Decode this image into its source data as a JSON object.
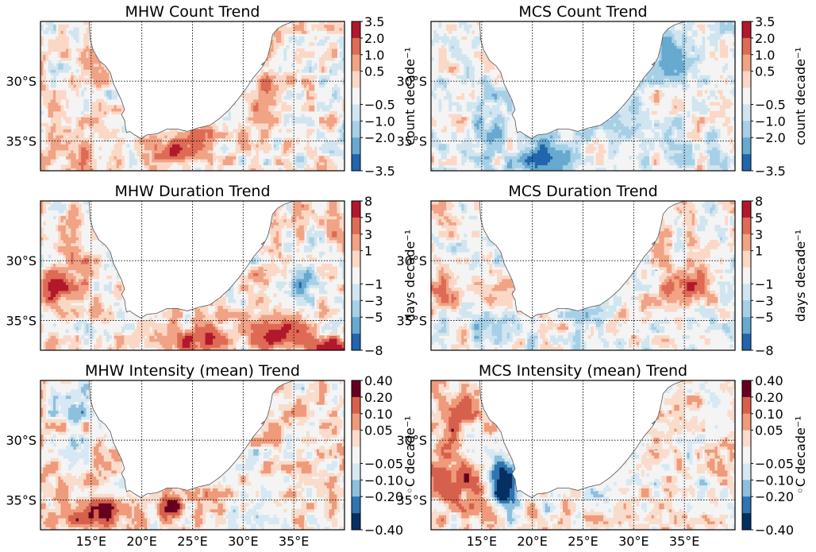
{
  "palettes": {
    "count": [
      "#2166ac",
      "#67a9cf",
      "#a6d0e6",
      "#d1e5f0",
      "#f4f4f4",
      "#fbd8c6",
      "#f1a385",
      "#de6b55",
      "#b2182b"
    ],
    "duration": [
      "#2166ac",
      "#67a9cf",
      "#a6d0e6",
      "#d1e5f0",
      "#f4f4f4",
      "#fbd8c6",
      "#f1a385",
      "#de6b55",
      "#b2182b"
    ],
    "intensity": [
      "#053061",
      "#2f74b3",
      "#8dc0dd",
      "#d6e8f3",
      "#f4f4f4",
      "#f9dccb",
      "#ef9a7b",
      "#d6604d",
      "#67001f"
    ]
  },
  "land_color": "#ffffff",
  "coast_color": "#555555",
  "x_ticks": [
    "15°E",
    "20°E",
    "25°E",
    "30°E",
    "35°E"
  ],
  "y_ticks": [
    "30°S",
    "35°S"
  ],
  "chart_data": [
    {
      "type": "heatmap",
      "id": "mhw-count",
      "title": "MHW Count Trend",
      "colorbar_label": "count decade⁻¹",
      "colorbar_ticks": [
        "3.5",
        "2.0",
        "1.0",
        "0.5",
        "−0.5",
        "−1.0",
        "−2.0",
        "−3.5"
      ],
      "palette": "count",
      "lon_range": [
        10,
        40
      ],
      "lat_range": [
        -37.5,
        -25
      ],
      "bias": 0.12,
      "seed": 11,
      "hotspots": [
        [
          23.2,
          -35.8,
          2.2,
          1.0,
          2.6
        ],
        [
          27.5,
          -34.4,
          3.5,
          0.7,
          1.4
        ],
        [
          13.5,
          -36.5,
          4,
          1.3,
          0.9
        ],
        [
          32.5,
          -30,
          1.5,
          3.5,
          0.8
        ]
      ]
    },
    {
      "type": "heatmap",
      "id": "mcs-count",
      "title": "MCS Count Trend",
      "colorbar_label": "count decade⁻¹",
      "colorbar_ticks": [
        "3.5",
        "2.0",
        "1.0",
        "0.5",
        "−0.5",
        "−1.0",
        "−2.0",
        "−3.5"
      ],
      "palette": "count",
      "lon_range": [
        10,
        40
      ],
      "lat_range": [
        -37.5,
        -25
      ],
      "bias": -0.18,
      "seed": 23,
      "hotspots": [
        [
          21.5,
          -36.3,
          2.5,
          1.2,
          -2.6
        ],
        [
          15.5,
          -33,
          1.5,
          3,
          -1.2
        ],
        [
          33,
          -28,
          3,
          2,
          -1.4
        ],
        [
          30,
          -34,
          4,
          1.3,
          -0.8
        ]
      ]
    },
    {
      "type": "heatmap",
      "id": "mhw-duration",
      "title": "MHW Duration Trend",
      "colorbar_label": "days decade⁻¹",
      "colorbar_ticks": [
        "8",
        "5",
        "3",
        "1",
        "−1",
        "−3",
        "−5",
        "−8"
      ],
      "palette": "duration",
      "lon_range": [
        10,
        40
      ],
      "lat_range": [
        -37.5,
        -25
      ],
      "bias": 0.35,
      "seed": 37,
      "hotspots": [
        [
          12,
          -32,
          2,
          1.5,
          2.2
        ],
        [
          38.5,
          -37.2,
          1.8,
          0.8,
          3.2
        ],
        [
          33.5,
          -36,
          2.5,
          1.3,
          2.3
        ],
        [
          25.5,
          -36.7,
          2.5,
          1.0,
          2.0
        ],
        [
          36,
          -31.5,
          1.5,
          1.5,
          -2.3
        ]
      ]
    },
    {
      "type": "heatmap",
      "id": "mcs-duration",
      "title": "MCS Duration Trend",
      "colorbar_label": "days decade⁻¹",
      "colorbar_ticks": [
        "8",
        "5",
        "3",
        "1",
        "−1",
        "−3",
        "−5",
        "−8"
      ],
      "palette": "duration",
      "lon_range": [
        10,
        40
      ],
      "lat_range": [
        -37.5,
        -25
      ],
      "bias": 0.05,
      "seed": 51,
      "hotspots": [
        [
          35,
          -32,
          3,
          1.5,
          1.5
        ],
        [
          17,
          -35.5,
          3,
          1.2,
          -1.7
        ],
        [
          25,
          -34.5,
          2,
          0.7,
          -1.8
        ],
        [
          12,
          -32.5,
          2,
          1.5,
          1.2
        ]
      ]
    },
    {
      "type": "heatmap",
      "id": "mhw-intensity",
      "title": "MHW Intensity (mean) Trend",
      "colorbar_label": "◦C decade⁻¹",
      "colorbar_ticks": [
        "0.40",
        "0.20",
        "0.10",
        "0.05",
        "−0.05",
        "−0.10",
        "−0.20",
        "−0.40"
      ],
      "palette": "intensity",
      "lon_range": [
        10,
        40
      ],
      "lat_range": [
        -37.5,
        -25
      ],
      "bias": 0.25,
      "seed": 67,
      "hotspots": [
        [
          16,
          -36,
          4,
          1.5,
          1.6
        ],
        [
          23,
          -35.5,
          1.2,
          0.8,
          2.5
        ],
        [
          13,
          -27,
          2,
          2,
          -1.0
        ]
      ]
    },
    {
      "type": "heatmap",
      "id": "mcs-intensity",
      "title": "MCS Intensity (mean) Trend",
      "colorbar_label": "◦C decade⁻¹",
      "colorbar_ticks": [
        "0.40",
        "0.20",
        "0.10",
        "0.05",
        "−0.05",
        "−0.10",
        "−0.20",
        "−0.40"
      ],
      "palette": "intensity",
      "lon_range": [
        10,
        40
      ],
      "lat_range": [
        -37.5,
        -25
      ],
      "bias": 0.2,
      "seed": 79,
      "hotspots": [
        [
          17.3,
          -34.3,
          1.2,
          1.3,
          -3.4
        ],
        [
          13,
          -33.5,
          3,
          2,
          1.8
        ],
        [
          12,
          -28,
          2,
          2,
          1.6
        ],
        [
          17,
          -32.5,
          1.5,
          1.2,
          -1.6
        ]
      ]
    }
  ]
}
